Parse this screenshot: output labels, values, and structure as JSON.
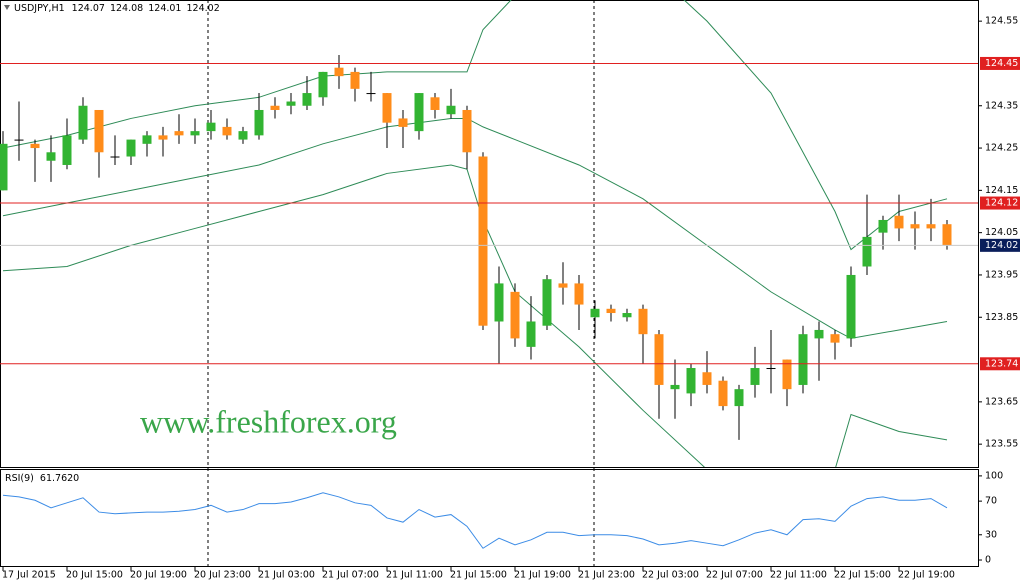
{
  "chart_data": [
    {
      "type": "candlestick",
      "symbol": "USDJPY,H1",
      "open": [
        124.15,
        124.27,
        124.26,
        124.22,
        124.21,
        124.27,
        124.34,
        124.23,
        124.23,
        124.26,
        124.28,
        124.29,
        124.28,
        124.29,
        124.3,
        124.27,
        124.28,
        124.35,
        124.35,
        124.35,
        124.37,
        124.44,
        124.43,
        124.38,
        124.38,
        124.32,
        124.29,
        124.37,
        124.33,
        124.34,
        124.23,
        123.84,
        123.91,
        123.78,
        123.83,
        123.93,
        123.93,
        123.85,
        123.87,
        123.85,
        123.87,
        123.81,
        123.68,
        123.67,
        123.72,
        123.7,
        123.64,
        123.69,
        123.73,
        123.75,
        123.69,
        123.8,
        123.81,
        123.8,
        123.97,
        124.05,
        124.09,
        124.07,
        124.07,
        124.07
      ],
      "high": [
        124.29,
        124.36,
        124.27,
        124.28,
        124.32,
        124.37,
        124.34,
        124.28,
        124.27,
        124.29,
        124.3,
        124.33,
        124.32,
        124.34,
        124.32,
        124.3,
        124.38,
        124.37,
        124.38,
        124.42,
        124.43,
        124.47,
        124.44,
        124.43,
        124.38,
        124.34,
        124.38,
        124.38,
        124.39,
        124.35,
        124.24,
        123.97,
        123.93,
        123.9,
        123.95,
        123.98,
        123.95,
        123.89,
        123.88,
        123.87,
        123.88,
        123.82,
        123.75,
        123.74,
        123.77,
        123.71,
        123.69,
        123.78,
        123.82,
        123.75,
        123.83,
        123.84,
        123.82,
        123.97,
        124.14,
        124.09,
        124.14,
        124.1,
        124.13,
        124.08
      ],
      "low": [
        124.15,
        124.22,
        124.17,
        124.17,
        124.2,
        124.26,
        124.18,
        124.21,
        124.21,
        124.23,
        124.23,
        124.26,
        124.26,
        124.27,
        124.27,
        124.26,
        124.27,
        124.32,
        124.33,
        124.34,
        124.35,
        124.39,
        124.36,
        124.36,
        124.25,
        124.25,
        124.27,
        124.32,
        124.32,
        124.2,
        123.82,
        123.74,
        123.78,
        123.75,
        123.82,
        123.88,
        123.82,
        123.8,
        123.84,
        123.84,
        123.74,
        123.61,
        123.61,
        123.64,
        123.67,
        123.63,
        123.56,
        123.66,
        123.67,
        123.64,
        123.67,
        123.7,
        123.75,
        123.78,
        123.95,
        124.01,
        124.03,
        124.01,
        124.03,
        124.01
      ],
      "close": [
        124.26,
        124.27,
        124.25,
        124.24,
        124.28,
        124.35,
        124.24,
        124.23,
        124.27,
        124.28,
        124.27,
        124.28,
        124.29,
        124.31,
        124.28,
        124.29,
        124.34,
        124.34,
        124.36,
        124.38,
        124.43,
        124.42,
        124.39,
        124.38,
        124.31,
        124.3,
        124.38,
        124.34,
        124.35,
        124.24,
        123.83,
        123.93,
        123.8,
        123.84,
        123.94,
        123.92,
        123.88,
        123.87,
        123.86,
        123.86,
        123.81,
        123.69,
        123.69,
        123.73,
        123.69,
        123.64,
        123.68,
        123.73,
        123.73,
        123.68,
        123.81,
        123.82,
        123.79,
        123.95,
        124.04,
        124.08,
        124.06,
        124.06,
        124.06,
        124.02
      ],
      "up_color": "#32b432",
      "down_color": "#ff8c1a",
      "neutral_color": "#000000",
      "ylim": [
        123.496,
        124.6
      ],
      "yticks": [
        124.55,
        124.35,
        124.25,
        124.15,
        124.05,
        123.95,
        123.85,
        123.65,
        123.55
      ],
      "xticks": [
        {
          "value": 0,
          "label": "17 Jul 2015"
        },
        {
          "value": 4,
          "label": "20 Jul 15:00"
        },
        {
          "value": 8,
          "label": "20 Jul 19:00"
        },
        {
          "value": 12,
          "label": "20 Jul 23:00"
        },
        {
          "value": 16,
          "label": "21 Jul 03:00"
        },
        {
          "value": 20,
          "label": "21 Jul 07:00"
        },
        {
          "value": 24,
          "label": "21 Jul 11:00"
        },
        {
          "value": 28,
          "label": "21 Jul 15:00"
        },
        {
          "value": 32,
          "label": "21 Jul 19:00"
        },
        {
          "value": 36,
          "label": "21 Jul 23:00"
        },
        {
          "value": 40,
          "label": "22 Jul 03:00"
        },
        {
          "value": 44,
          "label": "22 Jul 07:00"
        },
        {
          "value": 48,
          "label": "22 Jul 11:00"
        },
        {
          "value": 52,
          "label": "22 Jul 15:00"
        },
        {
          "value": 56,
          "label": "22 Jul 19:00"
        }
      ],
      "hlines": [
        124.45,
        124.12,
        123.74
      ],
      "hline_color": "#e02020",
      "price_color": "#0a1e5a",
      "bands": {
        "color": "#2e8b57",
        "x": [
          0,
          4,
          8,
          12,
          16,
          20,
          24,
          28,
          29,
          30,
          32,
          36,
          40,
          44,
          48,
          52,
          53,
          56,
          59
        ],
        "lines": [
          [
            124.25,
            124.28,
            124.32,
            124.35,
            124.37,
            124.42,
            124.43,
            124.43,
            124.43,
            124.53,
            124.61,
            124.74,
            124.69,
            124.55,
            124.38,
            124.1,
            124.01,
            124.1,
            124.13
          ],
          [
            124.09,
            124.12,
            124.15,
            124.18,
            124.21,
            124.26,
            124.3,
            124.32,
            124.32,
            124.3,
            124.27,
            124.21,
            124.13,
            124.02,
            123.91,
            123.82,
            123.8,
            123.82,
            123.84
          ],
          [
            123.96,
            123.97,
            124.02,
            124.06,
            124.1,
            124.14,
            124.19,
            124.21,
            124.2,
            124.08,
            123.91,
            123.78,
            123.63,
            123.49,
            123.37,
            123.49,
            123.62,
            123.58,
            123.56
          ]
        ]
      },
      "watermark": "www.freshforex.org"
    },
    {
      "type": "line",
      "title": "RSI(9)",
      "current": {
        "value": 61.762,
        "label": "61.7620"
      },
      "color": "#3c8ce6",
      "values": [
        77,
        75,
        71,
        62,
        68,
        74,
        57,
        55,
        56,
        57,
        57,
        58,
        60,
        65,
        57,
        60,
        67,
        67,
        69,
        74,
        80,
        75,
        68,
        65,
        50,
        45,
        60,
        51,
        54,
        40,
        14,
        26,
        18,
        24,
        33,
        33,
        29,
        30,
        30,
        29,
        25,
        18,
        20,
        23,
        20,
        17,
        24,
        32,
        36,
        30,
        48,
        49,
        46,
        64,
        73,
        75,
        71,
        71,
        73,
        62
      ],
      "ylim": [
        -8.3,
        107
      ],
      "yticks": [
        100,
        70,
        30,
        0
      ]
    }
  ]
}
